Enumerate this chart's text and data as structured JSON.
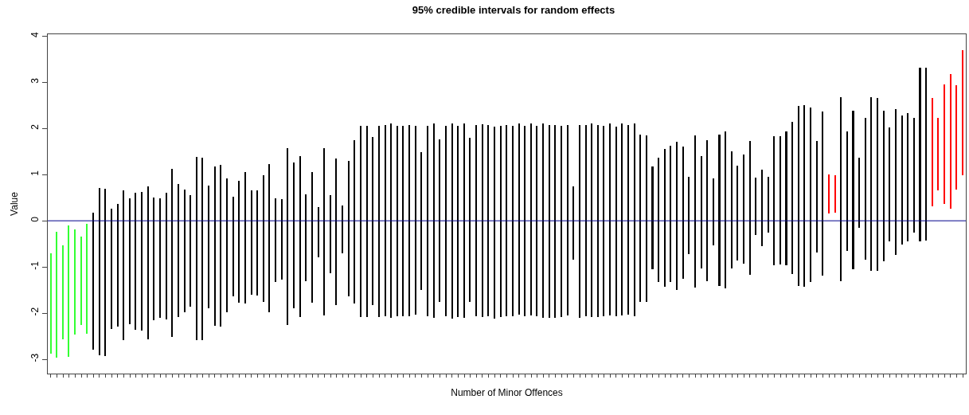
{
  "chart_data": {
    "type": "bar",
    "title": "95% credible intervals for random effects",
    "xlabel": "Number of Minor Offences",
    "ylabel": "Value",
    "categories": [
      null,
      null,
      null,
      null,
      null,
      null,
      null,
      null,
      null,
      null,
      null,
      null,
      null,
      null,
      null,
      null,
      null,
      null,
      null,
      null,
      null,
      null,
      null,
      null,
      null,
      null,
      null,
      null,
      null,
      null,
      null,
      null,
      null,
      null,
      null,
      null,
      null,
      null,
      null,
      null,
      null,
      null,
      null,
      null,
      null,
      null,
      null,
      null,
      null,
      null,
      null,
      null,
      null,
      null,
      null,
      null,
      null,
      null,
      null,
      null,
      null,
      null,
      null,
      null,
      null,
      null,
      null,
      null,
      null,
      null,
      null,
      null,
      null,
      null,
      null,
      null,
      null,
      null,
      null,
      null,
      null,
      null,
      null,
      null,
      null,
      null,
      null,
      null,
      null,
      null,
      null,
      null,
      null,
      null,
      null,
      null,
      null,
      null,
      null,
      null,
      null,
      null,
      null,
      null,
      null,
      null,
      null,
      null,
      null,
      null,
      null,
      null,
      null,
      null,
      null,
      null,
      null,
      null,
      null,
      null,
      null,
      null,
      null,
      null,
      null,
      null,
      null,
      null,
      null,
      null,
      null,
      null,
      null,
      null,
      null,
      null,
      null,
      null,
      null,
      null,
      null,
      null,
      null,
      null,
      null,
      null,
      null,
      null,
      null,
      null,
      null
    ],
    "base": [
      -2.88,
      -2.97,
      -2.56,
      -2.95,
      -2.46,
      -2.26,
      -2.44,
      -2.8,
      -2.91,
      -2.93,
      -2.34,
      -2.29,
      -2.59,
      -2.24,
      -2.36,
      -2.37,
      -2.56,
      -2.15,
      -2.1,
      -2.14,
      -2.51,
      -2.08,
      -1.98,
      -1.86,
      -2.59,
      -2.58,
      -1.89,
      -2.27,
      -2.29,
      -1.98,
      -1.64,
      -1.77,
      -1.79,
      -1.61,
      -1.62,
      -1.75,
      -1.99,
      -1.32,
      -1.27,
      -2.25,
      -1.89,
      -2.09,
      -1.3,
      -1.78,
      -0.79,
      -2.05,
      -1.13,
      -1.83,
      -0.7,
      -1.64,
      -1.8,
      -2.08,
      -2.08,
      -1.83,
      -2.08,
      -2.06,
      -2.11,
      -2.07,
      -2.07,
      -2.06,
      -2.03,
      -1.49,
      -2.06,
      -2.11,
      -1.76,
      -2.07,
      -2.12,
      -2.09,
      -2.1,
      -1.76,
      -2.07,
      -2.09,
      -2.07,
      -2.12,
      -2.08,
      -2.07,
      -2.07,
      -2.03,
      -2.06,
      -2.05,
      -2.06,
      -2.11,
      -2.1,
      -2.1,
      -2.08,
      -2.05,
      -0.84,
      -2.11,
      -2.07,
      -2.09,
      -2.08,
      -2.06,
      -2.05,
      -2.06,
      -2.05,
      -2.04,
      -2.06,
      -1.76,
      -1.76,
      -1.05,
      -1.33,
      -1.43,
      -1.32,
      -1.49,
      -1.25,
      -0.72,
      -1.44,
      -1.03,
      -1.3,
      -0.53,
      -1.41,
      -1.46,
      -1.03,
      -0.86,
      -0.93,
      -1.17,
      -0.31,
      -0.55,
      -0.26,
      -0.97,
      -0.95,
      -0.96,
      -1.15,
      -1.41,
      -1.43,
      -1.32,
      -0.68,
      -1.18,
      0.16,
      0.17,
      -1.31,
      -0.66,
      -1.05,
      -0.16,
      -0.84,
      -1.09,
      -1.09,
      -0.87,
      -0.45,
      -0.74,
      -0.52,
      -0.44,
      -0.25,
      -0.45,
      -0.43,
      0.32,
      0.66,
      0.36,
      0.26,
      0.68,
      0.98
    ],
    "values": [
      2.18,
      2.73,
      2.03,
      2.85,
      2.27,
      1.91,
      2.37,
      2.98,
      3.62,
      3.63,
      2.6,
      2.66,
      3.24,
      2.73,
      2.96,
      3.0,
      3.3,
      2.66,
      2.59,
      2.74,
      3.64,
      2.88,
      2.65,
      2.41,
      3.98,
      3.94,
      2.66,
      3.45,
      3.5,
      2.89,
      2.16,
      2.64,
      2.85,
      2.26,
      2.27,
      2.73,
      3.21,
      1.81,
      1.74,
      3.82,
      3.16,
      3.49,
      1.87,
      2.84,
      1.08,
      3.62,
      1.69,
      3.17,
      1.03,
      2.94,
      3.54,
      4.14,
      4.13,
      3.64,
      4.14,
      4.13,
      4.21,
      4.13,
      4.13,
      4.13,
      4.09,
      2.97,
      4.11,
      4.22,
      3.53,
      4.12,
      4.23,
      4.14,
      4.21,
      3.56,
      4.14,
      4.18,
      4.14,
      4.16,
      4.14,
      4.14,
      4.13,
      4.13,
      4.11,
      4.15,
      4.12,
      4.21,
      4.18,
      4.18,
      4.14,
      4.13,
      1.58,
      4.19,
      4.15,
      4.19,
      4.15,
      4.12,
      4.15,
      4.1,
      4.15,
      4.11,
      4.16,
      3.62,
      3.61,
      2.22,
      2.69,
      2.98,
      2.95,
      3.2,
      2.86,
      1.68,
      3.29,
      2.43,
      3.04,
      1.44,
      3.27,
      3.39,
      2.54,
      2.06,
      2.36,
      2.89,
      1.24,
      1.66,
      1.21,
      2.81,
      2.78,
      2.9,
      3.29,
      3.89,
      3.93,
      3.77,
      2.4,
      3.55,
      0.85,
      0.82,
      3.98,
      2.59,
      3.44,
      1.52,
      3.06,
      3.76,
      3.75,
      3.25,
      2.48,
      3.16,
      2.8,
      2.78,
      2.47,
      3.76,
      3.74,
      2.34,
      1.57,
      2.59,
      2.92,
      2.26,
      2.72
    ],
    "colors": [
      "#33ff33",
      "#33ff33",
      "#33ff33",
      "#33ff33",
      "#33ff33",
      "#33ff33",
      "#33ff33",
      "#000000",
      "#000000",
      "#000000",
      "#000000",
      "#000000",
      "#000000",
      "#000000",
      "#000000",
      "#000000",
      "#000000",
      "#000000",
      "#000000",
      "#000000",
      "#000000",
      "#000000",
      "#000000",
      "#000000",
      "#000000",
      "#000000",
      "#000000",
      "#000000",
      "#000000",
      "#000000",
      "#000000",
      "#000000",
      "#000000",
      "#000000",
      "#000000",
      "#000000",
      "#000000",
      "#000000",
      "#000000",
      "#000000",
      "#000000",
      "#000000",
      "#000000",
      "#000000",
      "#000000",
      "#000000",
      "#000000",
      "#000000",
      "#000000",
      "#000000",
      "#000000",
      "#000000",
      "#000000",
      "#000000",
      "#000000",
      "#000000",
      "#000000",
      "#000000",
      "#000000",
      "#000000",
      "#000000",
      "#000000",
      "#000000",
      "#000000",
      "#000000",
      "#000000",
      "#000000",
      "#000000",
      "#000000",
      "#000000",
      "#000000",
      "#000000",
      "#000000",
      "#000000",
      "#000000",
      "#000000",
      "#000000",
      "#000000",
      "#000000",
      "#000000",
      "#000000",
      "#000000",
      "#000000",
      "#000000",
      "#000000",
      "#000000",
      "#000000",
      "#000000",
      "#000000",
      "#000000",
      "#000000",
      "#000000",
      "#000000",
      "#000000",
      "#000000",
      "#000000",
      "#000000",
      "#000000",
      "#000000",
      "#000000",
      "#000000",
      "#000000",
      "#000000",
      "#000000",
      "#000000",
      "#000000",
      "#000000",
      "#000000",
      "#000000",
      "#000000",
      "#000000",
      "#000000",
      "#000000",
      "#000000",
      "#000000",
      "#000000",
      "#000000",
      "#000000",
      "#000000",
      "#000000",
      "#000000",
      "#000000",
      "#000000",
      "#000000",
      "#000000",
      "#000000",
      "#000000",
      "#000000",
      "#ff0000",
      "#ff0000",
      "#000000",
      "#000000",
      "#000000",
      "#000000",
      "#000000",
      "#000000",
      "#000000",
      "#000000",
      "#000000",
      "#000000",
      "#000000",
      "#000000",
      "#000000",
      "#000000",
      "#000000",
      "#ff0000",
      "#ff0000",
      "#ff0000",
      "#ff0000",
      "#ff0000",
      "#ff0000"
    ],
    "ylim": [
      -3.31,
      4.04
    ],
    "yticks": [
      -3,
      -2,
      -1,
      0,
      1,
      2,
      3,
      4
    ],
    "ref_lines": [
      {
        "axis": "y",
        "value": 0,
        "color": "#00008b",
        "line_style": "solid"
      }
    ],
    "tick_labels": "y"
  }
}
